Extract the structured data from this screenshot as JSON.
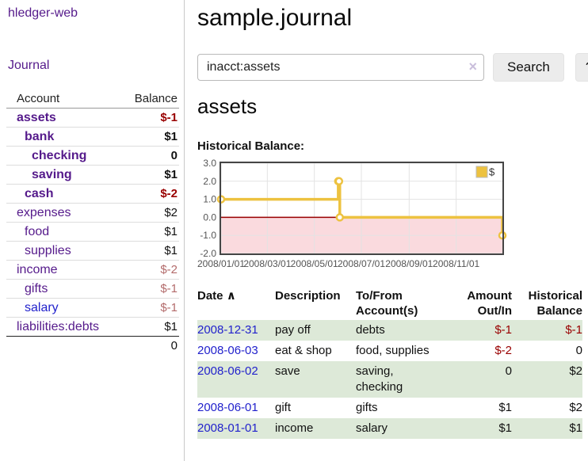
{
  "app_title": "hledger-web",
  "sidebar": {
    "nav_journal": "Journal",
    "headers": {
      "account": "Account",
      "balance": "Balance"
    },
    "accounts": [
      {
        "name": "assets",
        "balance": "$-1"
      },
      {
        "name": "bank",
        "balance": "$1"
      },
      {
        "name": "checking",
        "balance": "0"
      },
      {
        "name": "saving",
        "balance": "$1"
      },
      {
        "name": "cash",
        "balance": "$-2"
      },
      {
        "name": "expenses",
        "balance": "$2"
      },
      {
        "name": "food",
        "balance": "$1"
      },
      {
        "name": "supplies",
        "balance": "$1"
      },
      {
        "name": "income",
        "balance": "$-2"
      },
      {
        "name": "gifts",
        "balance": "$-1"
      },
      {
        "name": "salary",
        "balance": "$-1"
      },
      {
        "name": "liabilities:debts",
        "balance": "$1"
      }
    ],
    "total": "0"
  },
  "header": {
    "title": "sample.journal"
  },
  "search": {
    "value": "inacct:assets",
    "clear_icon": "×",
    "search_button": "Search",
    "help_button": "?"
  },
  "account_view": {
    "title": "assets",
    "chart_title": "Historical Balance:"
  },
  "chart_data": {
    "type": "line",
    "stepped": true,
    "title": "Historical Balance:",
    "series": [
      {
        "name": "$",
        "color": "#edc240",
        "points": [
          {
            "x": "2008-01-01",
            "y": 1
          },
          {
            "x": "2008-06-01",
            "y": 2
          },
          {
            "x": "2008-06-02",
            "y": 2
          },
          {
            "x": "2008-06-03",
            "y": 0
          },
          {
            "x": "2008-12-31",
            "y": -1
          }
        ]
      }
    ],
    "x_ticks": [
      "2008/01/01",
      "2008/03/01",
      "2008/05/01",
      "2008/07/01",
      "2008/09/01",
      "2008/11/01"
    ],
    "y_ticks": [
      "3.0",
      "2.0",
      "1.0",
      "0.0",
      "-1.0",
      "-2.0"
    ],
    "ylim": [
      -2,
      3
    ],
    "xlim": [
      "2008-01-01",
      "2008-12-31"
    ],
    "grid": true,
    "negative_region_color": "#fadade",
    "zero_line_color": "#990000",
    "legend": {
      "position": "top-right",
      "label": "$"
    }
  },
  "register": {
    "sort_icon": "∧",
    "headers": {
      "date": "Date",
      "description": "Description",
      "accounts": "To/From Account(s)",
      "amount": "Amount Out/In",
      "balance": "Historical Balance"
    },
    "rows": [
      {
        "date": "2008-12-31",
        "description": "pay off",
        "accounts": "debts",
        "amount": "$-1",
        "balance": "$-1"
      },
      {
        "date": "2008-06-03",
        "description": "eat & shop",
        "accounts": "food, supplies",
        "amount": "$-2",
        "balance": "0"
      },
      {
        "date": "2008-06-02",
        "description": "save",
        "accounts": "saving, checking",
        "amount": "0",
        "balance": "$2"
      },
      {
        "date": "2008-06-01",
        "description": "gift",
        "accounts": "gifts",
        "amount": "$1",
        "balance": "$2"
      },
      {
        "date": "2008-01-01",
        "description": "income",
        "accounts": "salary",
        "amount": "$1",
        "balance": "$1"
      }
    ]
  },
  "colors": {
    "link_purple": "#551a8b",
    "link_blue": "#2222cc",
    "negative_strong": "#990000",
    "negative_muted": "#b36b6b",
    "row_highlight_green": "#dde9d8",
    "chart_series_gold": "#edc240",
    "chart_negative_band_pink": "#fadade",
    "chart_zero_line_red": "#990000",
    "chart_border_gray": "#454545"
  }
}
